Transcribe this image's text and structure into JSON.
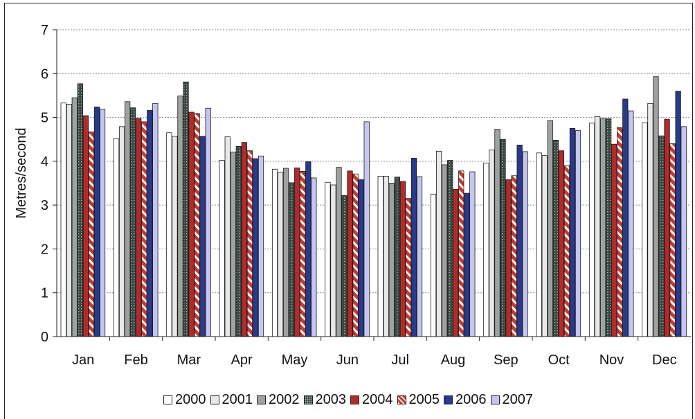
{
  "chart_data": {
    "type": "bar",
    "title": "",
    "xlabel": "",
    "ylabel": "Metres/second",
    "ylim": [
      0,
      7
    ],
    "yticks": [
      "0",
      "1",
      "2",
      "3",
      "4",
      "5",
      "6",
      "7"
    ],
    "grid": true,
    "legend_position": "bottom",
    "categories": [
      "Jan",
      "Feb",
      "Mar",
      "Apr",
      "May",
      "Jun",
      "Jul",
      "Aug",
      "Sep",
      "Oct",
      "Nov",
      "Dec"
    ],
    "series": [
      {
        "name": "2000",
        "color": "#ffffff",
        "pattern": "solid",
        "values": [
          5.33,
          4.52,
          4.65,
          4.02,
          3.82,
          3.52,
          3.66,
          3.25,
          3.96,
          4.19,
          4.87,
          4.88
        ]
      },
      {
        "name": "2001",
        "color": "#e8e8e8",
        "pattern": "solid",
        "values": [
          5.3,
          4.79,
          4.57,
          4.56,
          3.75,
          3.46,
          3.66,
          4.23,
          4.26,
          4.13,
          5.02,
          5.32
        ]
      },
      {
        "name": "2002",
        "color": "#9fa3a0",
        "pattern": "solid",
        "values": [
          5.45,
          5.36,
          5.49,
          4.21,
          3.84,
          3.86,
          3.5,
          3.92,
          4.73,
          4.93,
          4.97,
          5.93
        ]
      },
      {
        "name": "2003",
        "color": "#3a4a42",
        "pattern": "dotted",
        "values": [
          5.77,
          5.22,
          5.81,
          4.34,
          3.51,
          3.22,
          3.64,
          4.02,
          4.5,
          4.48,
          4.97,
          4.58
        ]
      },
      {
        "name": "2004",
        "color": "#b22a2a",
        "pattern": "solid",
        "values": [
          5.04,
          4.98,
          5.12,
          4.43,
          3.85,
          3.78,
          3.54,
          3.36,
          3.58,
          4.24,
          4.39,
          4.96
        ]
      },
      {
        "name": "2005",
        "color": "#c83a2e",
        "pattern": "hatched",
        "values": [
          4.67,
          4.9,
          5.09,
          4.24,
          3.77,
          3.71,
          3.15,
          3.78,
          3.67,
          3.9,
          4.77,
          4.4
        ]
      },
      {
        "name": "2006",
        "color": "#283a8c",
        "pattern": "solid",
        "values": [
          5.24,
          5.16,
          4.57,
          4.06,
          3.99,
          3.58,
          4.07,
          3.27,
          4.37,
          4.75,
          5.42,
          5.6
        ]
      },
      {
        "name": "2007",
        "color": "#c4c6f0",
        "pattern": "solid",
        "values": [
          5.19,
          5.32,
          5.21,
          4.12,
          3.62,
          4.9,
          3.65,
          3.76,
          4.22,
          4.7,
          5.15,
          4.79
        ]
      }
    ]
  }
}
